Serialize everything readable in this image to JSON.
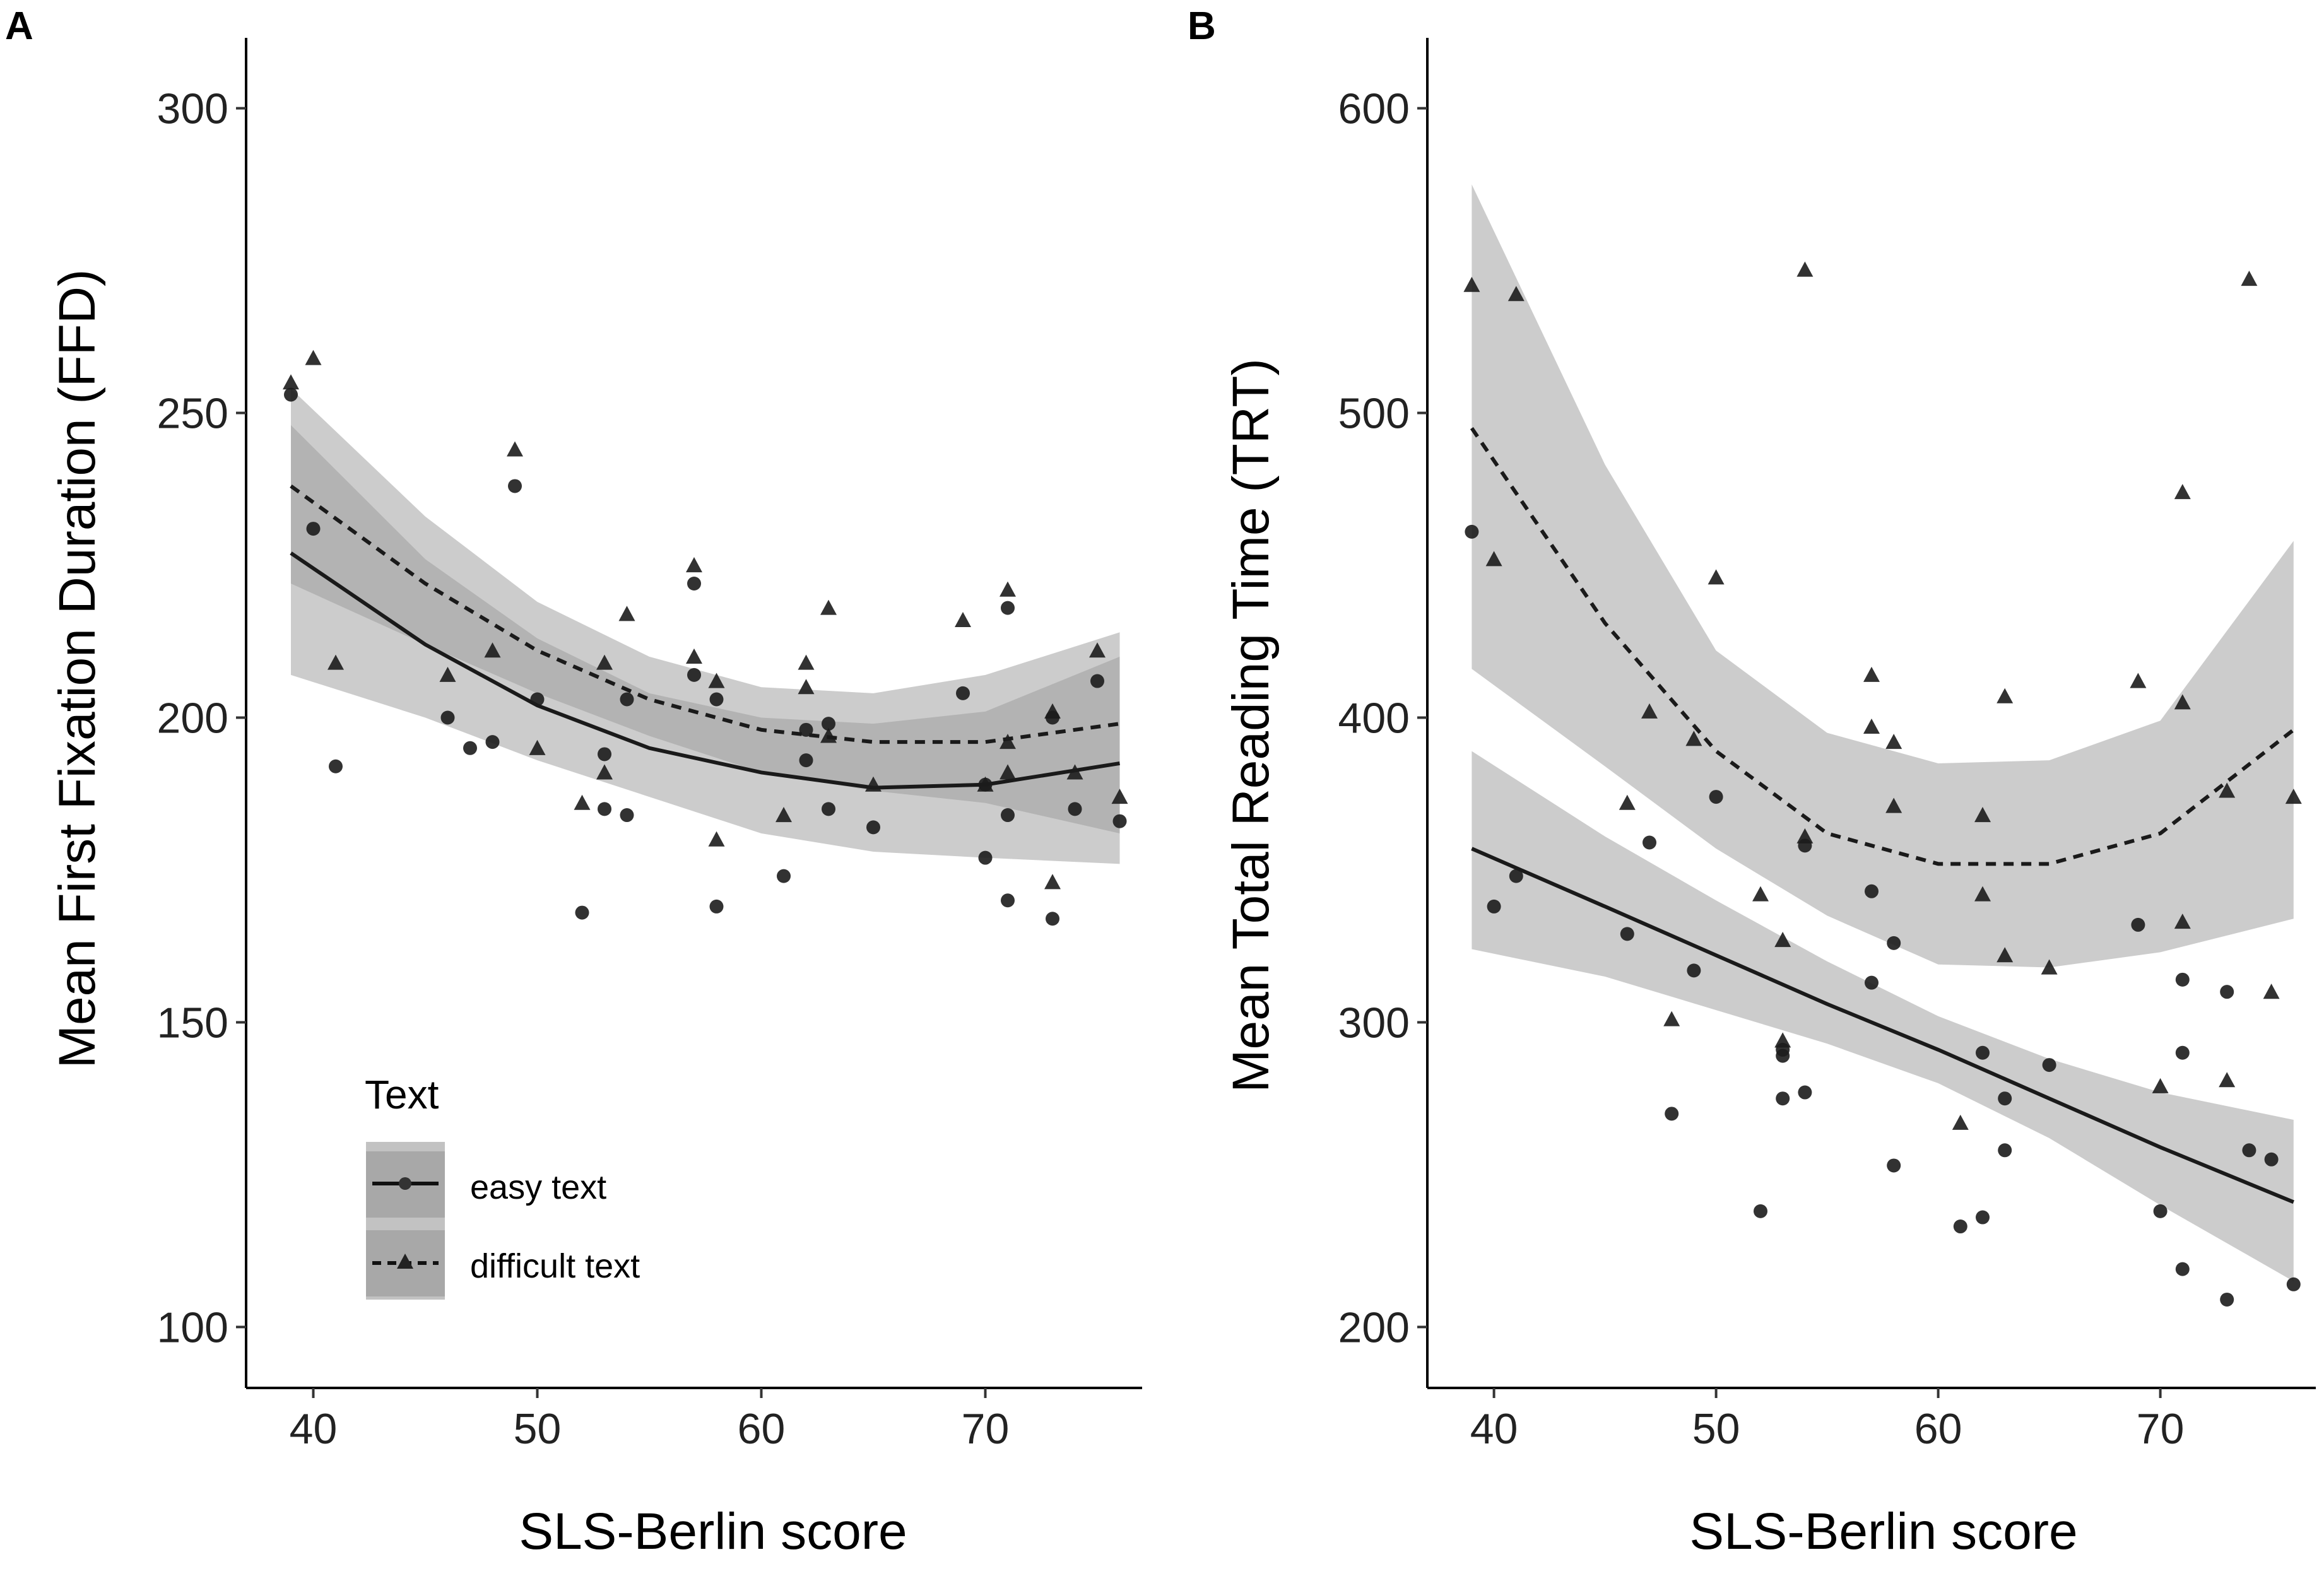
{
  "chart_data": [
    {
      "panel": "A",
      "type": "scatter",
      "xlabel": "SLS-Berlin score",
      "ylabel": "Mean First Fixation Duration (FFD)",
      "xlim": [
        37,
        77
      ],
      "ylim": [
        90,
        310
      ],
      "xticks": [
        40,
        50,
        60,
        70
      ],
      "yticks": [
        100,
        150,
        200,
        250,
        300
      ],
      "grid": false,
      "legend": {
        "title": "Text",
        "position": "bottom-left",
        "entries": [
          {
            "label": "easy text",
            "marker": "circle",
            "line": "solid"
          },
          {
            "label": "difficult text",
            "marker": "triangle",
            "line": "dashed"
          }
        ]
      },
      "series": [
        {
          "name": "easy text",
          "marker": "circle",
          "points": [
            [
              39,
              253
            ],
            [
              40,
              231
            ],
            [
              41,
              192
            ],
            [
              46,
              200
            ],
            [
              47,
              195
            ],
            [
              48,
              196
            ],
            [
              49,
              238
            ],
            [
              50,
              203
            ],
            [
              52,
              168
            ],
            [
              53,
              194
            ],
            [
              53,
              185
            ],
            [
              54,
              203
            ],
            [
              54,
              184
            ],
            [
              57,
              222
            ],
            [
              57,
              207
            ],
            [
              58,
              203
            ],
            [
              58,
              169
            ],
            [
              61,
              174
            ],
            [
              62,
              198
            ],
            [
              62,
              193
            ],
            [
              63,
              199
            ],
            [
              63,
              185
            ],
            [
              65,
              182
            ],
            [
              69,
              204
            ],
            [
              70,
              177
            ],
            [
              70,
              189
            ],
            [
              71,
              218
            ],
            [
              71,
              184
            ],
            [
              71,
              170
            ],
            [
              73,
              200
            ],
            [
              73,
              167
            ],
            [
              74,
              185
            ],
            [
              75,
              206
            ],
            [
              76,
              183
            ]
          ],
          "fit": [
            [
              39,
              227
            ],
            [
              45,
              212
            ],
            [
              50,
              202
            ],
            [
              55,
              195
            ],
            [
              60,
              191
            ],
            [
              65,
              188.5
            ],
            [
              70,
              189
            ],
            [
              76,
              192.5
            ]
          ],
          "ci_lower": [
            [
              39,
              207
            ],
            [
              45,
              200
            ],
            [
              50,
              193
            ],
            [
              55,
              187
            ],
            [
              60,
              181
            ],
            [
              65,
              178
            ],
            [
              70,
              177
            ],
            [
              76,
              176
            ]
          ],
          "ci_upper": [
            [
              39,
              248
            ],
            [
              45,
              226
            ],
            [
              50,
              213
            ],
            [
              55,
              204
            ],
            [
              60,
              200
            ],
            [
              65,
              199
            ],
            [
              70,
              201
            ],
            [
              76,
              210
            ]
          ]
        },
        {
          "name": "difficult text",
          "marker": "triangle",
          "points": [
            [
              39,
              255
            ],
            [
              40,
              259
            ],
            [
              41,
              209
            ],
            [
              46,
              207
            ],
            [
              48,
              211
            ],
            [
              49,
              244
            ],
            [
              50,
              195
            ],
            [
              52,
              186
            ],
            [
              53,
              191
            ],
            [
              53,
              209
            ],
            [
              54,
              217
            ],
            [
              57,
              225
            ],
            [
              57,
              210
            ],
            [
              58,
              206
            ],
            [
              58,
              180
            ],
            [
              61,
              184
            ],
            [
              62,
              209
            ],
            [
              62,
              205
            ],
            [
              63,
              218
            ],
            [
              63,
              197
            ],
            [
              65,
              189
            ],
            [
              69,
              216
            ],
            [
              70,
              189
            ],
            [
              71,
              221
            ],
            [
              71,
              196
            ],
            [
              71,
              191
            ],
            [
              73,
              201
            ],
            [
              73,
              173
            ],
            [
              74,
              191
            ],
            [
              75,
              211
            ],
            [
              76,
              187
            ]
          ],
          "fit": [
            [
              39,
              238
            ],
            [
              45,
              222
            ],
            [
              50,
              211
            ],
            [
              55,
              203
            ],
            [
              60,
              198
            ],
            [
              65,
              196
            ],
            [
              70,
              196
            ],
            [
              76,
              199
            ]
          ],
          "ci_lower": [
            [
              39,
              222
            ],
            [
              45,
              212
            ],
            [
              50,
              204
            ],
            [
              55,
              197
            ],
            [
              60,
              191
            ],
            [
              65,
              188
            ],
            [
              70,
              186
            ],
            [
              76,
              181
            ]
          ],
          "ci_upper": [
            [
              39,
              254
            ],
            [
              45,
              233
            ],
            [
              50,
              219
            ],
            [
              55,
              210
            ],
            [
              60,
              205
            ],
            [
              65,
              204
            ],
            [
              70,
              207
            ],
            [
              76,
              214
            ]
          ]
        }
      ]
    },
    {
      "panel": "B",
      "type": "scatter",
      "xlabel": "SLS-Berlin score",
      "ylabel": "Mean Total Reading Time (TRT)",
      "xlim": [
        37,
        77
      ],
      "ylim": [
        180,
        620
      ],
      "xticks": [
        40,
        50,
        60,
        70
      ],
      "yticks": [
        200,
        300,
        400,
        500,
        600
      ],
      "grid": false,
      "series": [
        {
          "name": "easy text",
          "marker": "circle",
          "points": [
            [
              39,
              461
            ],
            [
              40,
              338
            ],
            [
              41,
              348
            ],
            [
              46,
              329
            ],
            [
              47,
              359
            ],
            [
              48,
              270
            ],
            [
              49,
              317
            ],
            [
              50,
              374
            ],
            [
              52,
              238
            ],
            [
              53,
              291
            ],
            [
              53,
              289
            ],
            [
              53,
              275
            ],
            [
              54,
              277
            ],
            [
              54,
              358
            ],
            [
              57,
              343
            ],
            [
              57,
              313
            ],
            [
              58,
              326
            ],
            [
              58,
              253
            ],
            [
              61,
              233
            ],
            [
              62,
              236
            ],
            [
              62,
              290
            ],
            [
              63,
              275
            ],
            [
              63,
              258
            ],
            [
              65,
              286
            ],
            [
              69,
              332
            ],
            [
              70,
              238
            ],
            [
              71,
              314
            ],
            [
              71,
              290
            ],
            [
              71,
              219
            ],
            [
              73,
              310
            ],
            [
              73,
              209
            ],
            [
              74,
              258
            ],
            [
              75,
              255
            ],
            [
              76,
              214
            ]
          ],
          "fit": [
            [
              39,
              357
            ],
            [
              45,
              338
            ],
            [
              50,
              322
            ],
            [
              55,
              306
            ],
            [
              60,
              291
            ],
            [
              65,
              275
            ],
            [
              70,
              259
            ],
            [
              76,
              241
            ]
          ],
          "ci_lower": [
            [
              39,
              324
            ],
            [
              45,
              315
            ],
            [
              50,
              304
            ],
            [
              55,
              293
            ],
            [
              60,
              280
            ],
            [
              65,
              262
            ],
            [
              70,
              240
            ],
            [
              76,
              215
            ]
          ],
          "ci_upper": [
            [
              39,
              389
            ],
            [
              45,
              361
            ],
            [
              50,
              340
            ],
            [
              55,
              320
            ],
            [
              60,
              302
            ],
            [
              65,
              288
            ],
            [
              70,
              277
            ],
            [
              76,
              268
            ]
          ]
        },
        {
          "name": "difficult text",
          "marker": "triangle",
          "points": [
            [
              39,
              542
            ],
            [
              40,
              452
            ],
            [
              41,
              539
            ],
            [
              46,
              372
            ],
            [
              47,
              402
            ],
            [
              48,
              301
            ],
            [
              49,
              393
            ],
            [
              50,
              446
            ],
            [
              52,
              342
            ],
            [
              53,
              327
            ],
            [
              53,
              294
            ],
            [
              54,
              547
            ],
            [
              54,
              361
            ],
            [
              57,
              414
            ],
            [
              57,
              397
            ],
            [
              58,
              392
            ],
            [
              58,
              371
            ],
            [
              61,
              267
            ],
            [
              62,
              368
            ],
            [
              62,
              342
            ],
            [
              63,
              407
            ],
            [
              63,
              322
            ],
            [
              65,
              318
            ],
            [
              69,
              412
            ],
            [
              70,
              279
            ],
            [
              71,
              474
            ],
            [
              71,
              405
            ],
            [
              71,
              333
            ],
            [
              73,
              376
            ],
            [
              73,
              281
            ],
            [
              74,
              544
            ],
            [
              75,
              310
            ],
            [
              76,
              374
            ]
          ],
          "fit": [
            [
              39,
              495
            ],
            [
              45,
              431
            ],
            [
              50,
              389
            ],
            [
              55,
              362
            ],
            [
              60,
              352
            ],
            [
              65,
              352
            ],
            [
              70,
              362
            ],
            [
              76,
              396
            ]
          ],
          "ci_lower": [
            [
              39,
              416
            ],
            [
              45,
              384
            ],
            [
              50,
              357
            ],
            [
              55,
              335
            ],
            [
              60,
              319
            ],
            [
              65,
              318
            ],
            [
              70,
              323
            ],
            [
              76,
              334
            ]
          ],
          "ci_upper": [
            [
              39,
              575
            ],
            [
              45,
              483
            ],
            [
              50,
              422
            ],
            [
              55,
              395
            ],
            [
              60,
              385
            ],
            [
              65,
              386
            ],
            [
              70,
              399
            ],
            [
              76,
              458
            ]
          ]
        }
      ]
    }
  ]
}
